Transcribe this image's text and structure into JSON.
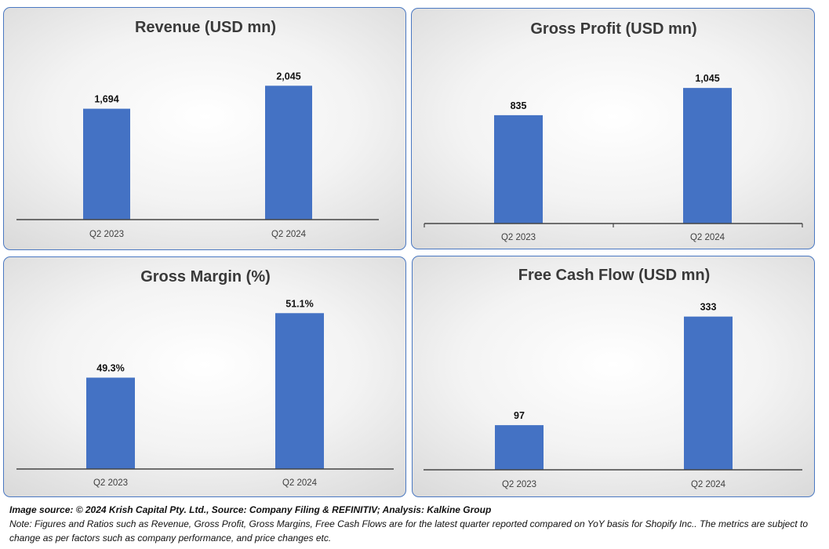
{
  "colors": {
    "bar": "#4472c4",
    "axis": "#444444",
    "panel_border": "#4a78c2"
  },
  "chart_data": [
    {
      "type": "bar",
      "title": "Revenue (USD mn)",
      "categories": [
        "Q2 2023",
        "Q2 2024"
      ],
      "values": [
        1694,
        2045
      ],
      "value_labels": [
        "1,694",
        "2,045"
      ],
      "ylim": [
        0,
        2600
      ],
      "grid": false,
      "legend": "none"
    },
    {
      "type": "bar",
      "title": "Gross Profit (USD mn)",
      "categories": [
        "Q2 2023",
        "Q2 2024"
      ],
      "values": [
        835,
        1045
      ],
      "value_labels": [
        "835",
        "1,045"
      ],
      "ylim": [
        0,
        1330
      ],
      "grid": false,
      "legend": "none"
    },
    {
      "type": "bar",
      "title": "Gross Margin (%)",
      "categories": [
        "Q2 2023",
        "Q2 2024"
      ],
      "values": [
        49.3,
        51.1
      ],
      "value_labels": [
        "49.3%",
        "51.1%"
      ],
      "ylim": [
        46.75,
        51.5
      ],
      "grid": false,
      "legend": "none"
    },
    {
      "type": "bar",
      "title": "Free Cash Flow (USD mn)",
      "categories": [
        "Q2 2023",
        "Q2 2024"
      ],
      "values": [
        97,
        333
      ],
      "value_labels": [
        "97",
        "333"
      ],
      "ylim": [
        0,
        375
      ],
      "grid": false,
      "legend": "none"
    }
  ],
  "footer": {
    "source": "Image source: © 2024 Krish Capital Pty. Ltd., Source: Company Filing & REFINITIV; Analysis: Kalkine Group",
    "note": "Note: Figures and Ratios such as  Revenue, Gross Profit, Gross Margins, Free Cash Flows are for the latest quarter reported compared on YoY basis for Shopify Inc.. The metrics are subject to change as per factors such as company performance, and price changes etc."
  }
}
